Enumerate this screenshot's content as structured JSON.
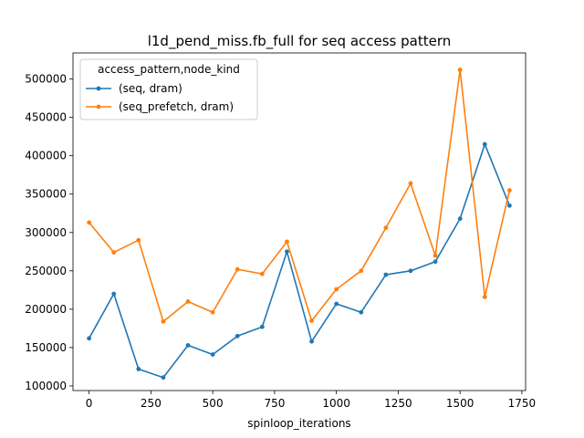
{
  "chart_data": {
    "type": "line",
    "title": "l1d_pend_miss.fb_full for seq access pattern",
    "xlabel": "spinloop_iterations",
    "ylabel": "",
    "xlim": [
      -65,
      1765
    ],
    "ylim": [
      94000,
      534000
    ],
    "xticks": [
      0,
      250,
      500,
      750,
      1000,
      1250,
      1500,
      1750
    ],
    "yticks": [
      100000,
      150000,
      200000,
      250000,
      300000,
      350000,
      400000,
      450000,
      500000
    ],
    "grid": false,
    "legend": {
      "title": "access_pattern,node_kind",
      "placement": "top-left"
    },
    "x": [
      0,
      100,
      200,
      300,
      400,
      500,
      600,
      700,
      800,
      900,
      1000,
      1100,
      1200,
      1300,
      1400,
      1500,
      1600,
      1700
    ],
    "series": [
      {
        "name": "(seq, dram)",
        "color": "#1f77b4",
        "values": [
          162000,
          220000,
          122000,
          111000,
          153000,
          141000,
          165000,
          177000,
          275000,
          158000,
          207000,
          196000,
          245000,
          250000,
          262000,
          318000,
          415000,
          335000
        ]
      },
      {
        "name": "(seq_prefetch, dram)",
        "color": "#ff7f0e",
        "values": [
          313000,
          274000,
          290000,
          184000,
          210000,
          196000,
          252000,
          246000,
          288000,
          185000,
          226000,
          250000,
          306000,
          364000,
          270000,
          512000,
          216000,
          355000
        ]
      }
    ]
  }
}
